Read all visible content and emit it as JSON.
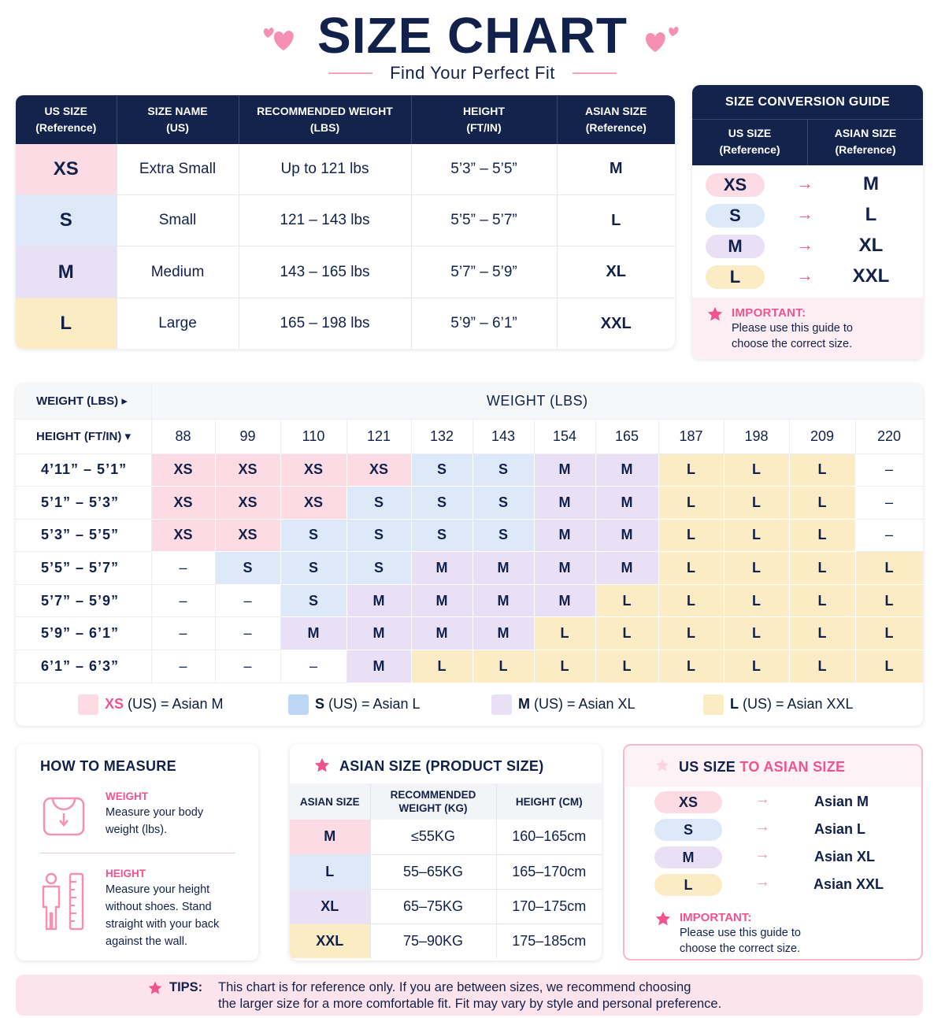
{
  "header": {
    "title": "SIZE CHART",
    "subtitle": "Find Your Perfect Fit"
  },
  "colors": {
    "navy": "#13234b",
    "pink_accent": "#f0538f",
    "xs": "#fcdbe5",
    "s": "#dde9f8",
    "m": "#e9e0f6",
    "l": "#fcecc5"
  },
  "size_table": {
    "headers": [
      {
        "l1": "US SIZE",
        "l2": "(Reference)"
      },
      {
        "l1": "SIZE NAME",
        "l2": "(US)"
      },
      {
        "l1": "RECOMMENDED WEIGHT",
        "l2": "(LBS)"
      },
      {
        "l1": "HEIGHT",
        "l2": "(FT/IN)"
      },
      {
        "l1": "ASIAN SIZE",
        "l2": "(Reference)"
      }
    ],
    "rows": [
      {
        "code": "XS",
        "name": "Extra Small",
        "weight": "Up to 121 lbs",
        "height": "5’3” – 5’5”",
        "asian": "M"
      },
      {
        "code": "S",
        "name": "Small",
        "weight": "121 – 143 lbs",
        "height": "5’5” – 5’7”",
        "asian": "L"
      },
      {
        "code": "M",
        "name": "Medium",
        "weight": "143 – 165 lbs",
        "height": "5’7” – 5’9”",
        "asian": "XL"
      },
      {
        "code": "L",
        "name": "Large",
        "weight": "165 – 198 lbs",
        "height": "5’9” – 6’1”",
        "asian": "XXL"
      }
    ]
  },
  "conversion_guide": {
    "title": "SIZE CONVERSION GUIDE",
    "col1": {
      "l1": "US SIZE",
      "l2": "(Reference)"
    },
    "col2": {
      "l1": "ASIAN SIZE",
      "l2": "(Reference)"
    },
    "rows": [
      {
        "us": "XS",
        "asian": "M"
      },
      {
        "us": "S",
        "asian": "L"
      },
      {
        "us": "M",
        "asian": "XL"
      },
      {
        "us": "L",
        "asian": "XXL"
      }
    ],
    "arrow": "→",
    "important_label": "IMPORTANT:",
    "important_l1": "Please use this guide to",
    "important_l2": "choose the correct size."
  },
  "grid": {
    "corner_top": "WEIGHT (LBS) ▸",
    "corner_bottom": "HEIGHT (FT/IN) ▾",
    "weight_header": "WEIGHT (LBS)",
    "weights": [
      "88",
      "99",
      "110",
      "121",
      "132",
      "143",
      "154",
      "165",
      "187",
      "198",
      "209",
      "220"
    ],
    "heights": [
      "4’11” – 5’1”",
      "5’1” – 5’3”",
      "5’3” – 5’5”",
      "5’5” – 5’7”",
      "5’7” – 5’9”",
      "5’9” – 6’1”",
      "6’1” – 6’3”"
    ],
    "cells": [
      [
        "XS",
        "XS",
        "XS",
        "XS",
        "S",
        "S",
        "M",
        "M",
        "L",
        "L",
        "L",
        "–"
      ],
      [
        "XS",
        "XS",
        "XS",
        "S",
        "S",
        "S",
        "M",
        "M",
        "L",
        "L",
        "L",
        "–"
      ],
      [
        "XS",
        "XS",
        "S",
        "S",
        "S",
        "S",
        "M",
        "M",
        "L",
        "L",
        "L",
        "–"
      ],
      [
        "–",
        "S",
        "S",
        "S",
        "M",
        "M",
        "M",
        "M",
        "L",
        "L",
        "L",
        "L"
      ],
      [
        "–",
        "–",
        "S",
        "M",
        "M",
        "M",
        "M",
        "L",
        "L",
        "L",
        "L",
        "L"
      ],
      [
        "–",
        "–",
        "M",
        "M",
        "M",
        "M",
        "L",
        "L",
        "L",
        "L",
        "L",
        "L"
      ],
      [
        "–",
        "–",
        "–",
        "M",
        "L",
        "L",
        "L",
        "L",
        "L",
        "L",
        "L",
        "L"
      ]
    ],
    "legend": [
      {
        "code": "XS",
        "rest": "(US) = Asian M"
      },
      {
        "code": "S",
        "rest": "(US) = Asian L"
      },
      {
        "code": "M",
        "rest": "(US) = Asian XL"
      },
      {
        "code": "L",
        "rest": "(US) = Asian XXL"
      }
    ]
  },
  "how_to_measure": {
    "title": "HOW TO MEASURE",
    "weight_label": "WEIGHT",
    "weight_l1": "Measure your body",
    "weight_l2": "weight (lbs).",
    "height_label": "HEIGHT",
    "height_l1": "Measure your height",
    "height_l2": "without shoes. Stand",
    "height_l3": "straight with your back",
    "height_l4": "against the wall."
  },
  "asian_table": {
    "title": "ASIAN SIZE (PRODUCT SIZE)",
    "h1": "ASIAN SIZE",
    "h2a": "RECOMMENDED",
    "h2b": "WEIGHT (KG)",
    "h3": "HEIGHT (CM)",
    "rows": [
      {
        "size": "M",
        "weight": "≤55KG",
        "height": "160–165cm"
      },
      {
        "size": "L",
        "weight": "55–65KG",
        "height": "165–170cm"
      },
      {
        "size": "XL",
        "weight": "65–75KG",
        "height": "170–175cm"
      },
      {
        "size": "XXL",
        "weight": "75–90KG",
        "height": "175–185cm"
      }
    ]
  },
  "us_to_asian": {
    "title_a": "US SIZE ",
    "title_b": "TO ASIAN SIZE",
    "rows": [
      {
        "us": "XS",
        "asian": "Asian M"
      },
      {
        "us": "S",
        "asian": "Asian L"
      },
      {
        "us": "M",
        "asian": "Asian XL"
      },
      {
        "us": "L",
        "asian": "Asian XXL"
      }
    ],
    "arrow": "→",
    "important_label": "IMPORTANT:",
    "important_l1": "Please use this guide to",
    "important_l2": "choose the correct size."
  },
  "tips": {
    "label": "TIPS:",
    "l1": "This chart is for reference only. If you are between sizes, we recommend choosing",
    "l2": "the larger size for a more comfortable fit. Fit may vary by style and personal preference."
  }
}
